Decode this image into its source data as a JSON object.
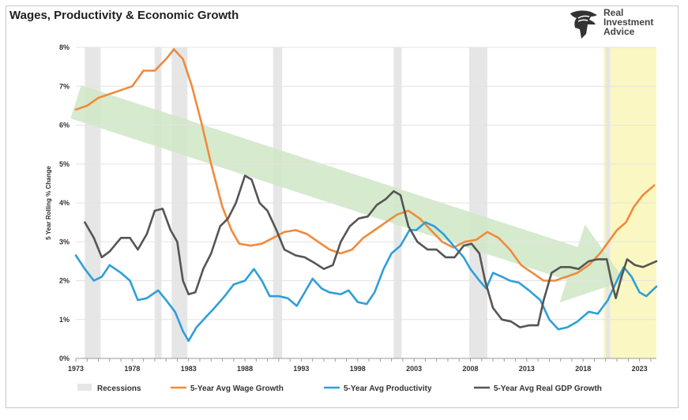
{
  "title": "Wages, Productivity & Economic Growth",
  "logo": {
    "line1": "Real",
    "line2": "Investment",
    "line3": "Advice"
  },
  "chart_data": {
    "type": "line",
    "title": "Wages, Productivity & Economic Growth",
    "xlabel": "",
    "ylabel": "5 Year Rolling % Change",
    "xlim": [
      1973,
      2024.5
    ],
    "ylim": [
      0,
      8
    ],
    "x_ticks": [
      "1973",
      "1978",
      "1983",
      "1988",
      "1993",
      "1998",
      "2003",
      "2008",
      "2013",
      "2018",
      "2023"
    ],
    "y_ticks": [
      "0%",
      "1%",
      "2%",
      "3%",
      "4%",
      "5%",
      "6%",
      "7%",
      "8%"
    ],
    "recessions": [
      [
        1973.8,
        1975.2
      ],
      [
        1980.0,
        1980.6
      ],
      [
        1981.5,
        1982.9
      ],
      [
        1990.5,
        1991.3
      ],
      [
        2001.2,
        2001.9
      ],
      [
        2007.9,
        2009.5
      ],
      [
        2020.0,
        2020.4
      ]
    ],
    "shaded_region": {
      "x": [
        2019.8,
        2024.5
      ],
      "color": "#fbf7c2"
    },
    "trend_arrow": {
      "from": [
        1973,
        6.6
      ],
      "to": [
        2021.7,
        2.0
      ],
      "color": "#cfe6c6"
    },
    "legend": {
      "position": "bottom"
    },
    "series": [
      {
        "name": "Recessions",
        "color": "#e6e6e6",
        "legend_only": true
      },
      {
        "name": "5-Year Avg Wage Growth",
        "color": "#f08a3c",
        "points": [
          [
            1973.0,
            6.4
          ],
          [
            1974.0,
            6.5
          ],
          [
            1975.0,
            6.7
          ],
          [
            1976.0,
            6.8
          ],
          [
            1977.0,
            6.9
          ],
          [
            1978.0,
            7.0
          ],
          [
            1979.0,
            7.4
          ],
          [
            1980.0,
            7.4
          ],
          [
            1981.0,
            7.7
          ],
          [
            1981.7,
            7.95
          ],
          [
            1982.5,
            7.7
          ],
          [
            1983.3,
            7.0
          ],
          [
            1984.2,
            6.0
          ],
          [
            1985.0,
            5.0
          ],
          [
            1986.0,
            3.9
          ],
          [
            1986.8,
            3.3
          ],
          [
            1987.5,
            2.95
          ],
          [
            1988.5,
            2.9
          ],
          [
            1989.5,
            2.95
          ],
          [
            1990.5,
            3.1
          ],
          [
            1991.5,
            3.25
          ],
          [
            1992.5,
            3.3
          ],
          [
            1993.5,
            3.2
          ],
          [
            1994.5,
            3.0
          ],
          [
            1995.5,
            2.8
          ],
          [
            1996.5,
            2.7
          ],
          [
            1997.5,
            2.8
          ],
          [
            1998.5,
            3.1
          ],
          [
            1999.5,
            3.3
          ],
          [
            2000.5,
            3.5
          ],
          [
            2001.5,
            3.7
          ],
          [
            2002.5,
            3.8
          ],
          [
            2003.5,
            3.6
          ],
          [
            2004.5,
            3.3
          ],
          [
            2005.5,
            3.0
          ],
          [
            2006.5,
            2.85
          ],
          [
            2007.5,
            3.0
          ],
          [
            2008.5,
            3.05
          ],
          [
            2009.5,
            3.25
          ],
          [
            2010.5,
            3.1
          ],
          [
            2011.5,
            2.8
          ],
          [
            2012.5,
            2.4
          ],
          [
            2013.5,
            2.2
          ],
          [
            2014.5,
            2.0
          ],
          [
            2015.5,
            2.0
          ],
          [
            2016.5,
            2.1
          ],
          [
            2017.5,
            2.2
          ],
          [
            2018.5,
            2.4
          ],
          [
            2019.5,
            2.7
          ],
          [
            2020.5,
            3.1
          ],
          [
            2021.0,
            3.3
          ],
          [
            2021.8,
            3.5
          ],
          [
            2022.5,
            3.9
          ],
          [
            2023.3,
            4.2
          ],
          [
            2024.3,
            4.45
          ]
        ]
      },
      {
        "name": "5-Year Avg Productivity",
        "color": "#2e9fd8",
        "points": [
          [
            1973.0,
            2.65
          ],
          [
            1973.8,
            2.3
          ],
          [
            1974.6,
            2.0
          ],
          [
            1975.3,
            2.1
          ],
          [
            1976.0,
            2.4
          ],
          [
            1977.0,
            2.2
          ],
          [
            1977.8,
            2.0
          ],
          [
            1978.5,
            1.5
          ],
          [
            1979.3,
            1.55
          ],
          [
            1980.3,
            1.75
          ],
          [
            1981.0,
            1.5
          ],
          [
            1981.8,
            1.2
          ],
          [
            1982.5,
            0.7
          ],
          [
            1983.0,
            0.45
          ],
          [
            1983.7,
            0.8
          ],
          [
            1984.5,
            1.05
          ],
          [
            1985.3,
            1.3
          ],
          [
            1986.2,
            1.6
          ],
          [
            1987.0,
            1.9
          ],
          [
            1988.0,
            2.0
          ],
          [
            1988.8,
            2.3
          ],
          [
            1989.5,
            2.0
          ],
          [
            1990.2,
            1.6
          ],
          [
            1991.0,
            1.6
          ],
          [
            1991.8,
            1.55
          ],
          [
            1992.6,
            1.35
          ],
          [
            1993.5,
            1.8
          ],
          [
            1994.0,
            2.05
          ],
          [
            1994.8,
            1.8
          ],
          [
            1995.5,
            1.7
          ],
          [
            1996.5,
            1.65
          ],
          [
            1997.2,
            1.75
          ],
          [
            1998.0,
            1.45
          ],
          [
            1998.8,
            1.4
          ],
          [
            1999.5,
            1.7
          ],
          [
            2000.3,
            2.3
          ],
          [
            2001.0,
            2.7
          ],
          [
            2001.8,
            2.9
          ],
          [
            2002.6,
            3.3
          ],
          [
            2003.2,
            3.3
          ],
          [
            2004.0,
            3.5
          ],
          [
            2004.8,
            3.4
          ],
          [
            2005.6,
            3.2
          ],
          [
            2006.5,
            2.9
          ],
          [
            2007.4,
            2.6
          ],
          [
            2008.0,
            2.3
          ],
          [
            2008.8,
            2.0
          ],
          [
            2009.4,
            1.8
          ],
          [
            2010.0,
            2.2
          ],
          [
            2010.8,
            2.1
          ],
          [
            2011.5,
            2.0
          ],
          [
            2012.3,
            1.95
          ],
          [
            2013.2,
            1.75
          ],
          [
            2014.2,
            1.5
          ],
          [
            2015.0,
            1.0
          ],
          [
            2015.8,
            0.75
          ],
          [
            2016.6,
            0.8
          ],
          [
            2017.5,
            0.95
          ],
          [
            2018.5,
            1.2
          ],
          [
            2019.3,
            1.15
          ],
          [
            2020.2,
            1.5
          ],
          [
            2021.0,
            2.0
          ],
          [
            2021.6,
            2.35
          ],
          [
            2022.3,
            2.1
          ],
          [
            2023.0,
            1.7
          ],
          [
            2023.6,
            1.6
          ],
          [
            2024.5,
            1.85
          ]
        ]
      },
      {
        "name": "5-Year Avg Real GDP Growth",
        "color": "#555555",
        "points": [
          [
            1973.8,
            3.5
          ],
          [
            1974.6,
            3.1
          ],
          [
            1975.3,
            2.6
          ],
          [
            1976.0,
            2.75
          ],
          [
            1977.0,
            3.1
          ],
          [
            1977.8,
            3.1
          ],
          [
            1978.5,
            2.8
          ],
          [
            1979.3,
            3.2
          ],
          [
            1980.0,
            3.8
          ],
          [
            1980.7,
            3.85
          ],
          [
            1981.4,
            3.3
          ],
          [
            1982.0,
            3.0
          ],
          [
            1982.5,
            2.0
          ],
          [
            1983.0,
            1.65
          ],
          [
            1983.6,
            1.7
          ],
          [
            1984.3,
            2.3
          ],
          [
            1985.0,
            2.7
          ],
          [
            1985.8,
            3.4
          ],
          [
            1986.5,
            3.6
          ],
          [
            1987.2,
            4.0
          ],
          [
            1988.0,
            4.7
          ],
          [
            1988.6,
            4.6
          ],
          [
            1989.3,
            4.0
          ],
          [
            1990.0,
            3.8
          ],
          [
            1990.8,
            3.3
          ],
          [
            1991.5,
            2.8
          ],
          [
            1992.5,
            2.65
          ],
          [
            1993.3,
            2.6
          ],
          [
            1994.2,
            2.45
          ],
          [
            1995.0,
            2.3
          ],
          [
            1995.8,
            2.4
          ],
          [
            1996.5,
            3.0
          ],
          [
            1997.3,
            3.4
          ],
          [
            1998.1,
            3.6
          ],
          [
            1998.9,
            3.65
          ],
          [
            1999.7,
            3.95
          ],
          [
            2000.5,
            4.1
          ],
          [
            2001.2,
            4.3
          ],
          [
            2001.8,
            4.2
          ],
          [
            2002.5,
            3.4
          ],
          [
            2003.3,
            3.0
          ],
          [
            2004.2,
            2.8
          ],
          [
            2005.0,
            2.8
          ],
          [
            2005.8,
            2.6
          ],
          [
            2006.6,
            2.6
          ],
          [
            2007.4,
            2.9
          ],
          [
            2008.1,
            2.95
          ],
          [
            2008.8,
            2.7
          ],
          [
            2009.3,
            2.0
          ],
          [
            2010.0,
            1.3
          ],
          [
            2010.8,
            1.0
          ],
          [
            2011.6,
            0.95
          ],
          [
            2012.4,
            0.8
          ],
          [
            2013.2,
            0.85
          ],
          [
            2014.0,
            0.85
          ],
          [
            2014.5,
            1.5
          ],
          [
            2015.2,
            2.2
          ],
          [
            2016.0,
            2.35
          ],
          [
            2016.8,
            2.35
          ],
          [
            2017.6,
            2.3
          ],
          [
            2018.5,
            2.5
          ],
          [
            2019.3,
            2.55
          ],
          [
            2020.1,
            2.55
          ],
          [
            2020.5,
            2.0
          ],
          [
            2020.9,
            1.55
          ],
          [
            2021.4,
            2.1
          ],
          [
            2021.9,
            2.55
          ],
          [
            2022.6,
            2.4
          ],
          [
            2023.3,
            2.35
          ],
          [
            2024.5,
            2.5
          ]
        ]
      }
    ]
  }
}
